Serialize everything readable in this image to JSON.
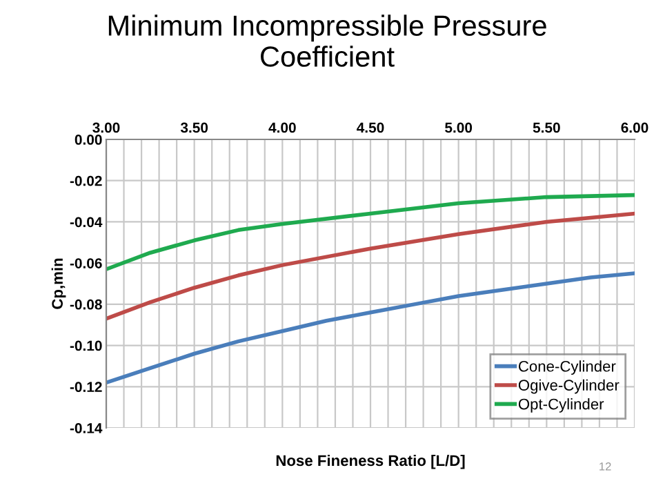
{
  "chart_data": {
    "type": "line",
    "title": "Minimum Incompressible Pressure\nCoefficient",
    "xlabel": "Nose Fineness Ratio [L/D]",
    "ylabel": "Cp,min",
    "series": [
      {
        "name": "Cone-Cylinder",
        "color": "#4a7ebb",
        "x": [
          3.0,
          3.25,
          3.5,
          3.75,
          4.0,
          4.25,
          4.5,
          4.75,
          5.0,
          5.25,
          5.5,
          5.75,
          6.0
        ],
        "values": [
          -0.118,
          -0.111,
          -0.104,
          -0.098,
          -0.093,
          -0.088,
          -0.084,
          -0.08,
          -0.076,
          -0.073,
          -0.07,
          -0.067,
          -0.065
        ]
      },
      {
        "name": "Ogive-Cylinder",
        "color": "#be4b48",
        "x": [
          3.0,
          3.25,
          3.5,
          3.75,
          4.0,
          4.5,
          5.0,
          5.5,
          6.0
        ],
        "values": [
          -0.087,
          -0.079,
          -0.072,
          -0.066,
          -0.061,
          -0.053,
          -0.046,
          -0.04,
          -0.036
        ]
      },
      {
        "name": "Opt-Cylinder",
        "color": "#1faa4f",
        "x": [
          3.0,
          3.25,
          3.5,
          3.75,
          4.0,
          4.5,
          5.0,
          5.5,
          6.0
        ],
        "values": [
          -0.063,
          -0.055,
          -0.049,
          -0.044,
          -0.041,
          -0.036,
          -0.031,
          -0.028,
          -0.027
        ]
      }
    ],
    "xlim": [
      3.0,
      6.0
    ],
    "ylim": [
      -0.14,
      0.0
    ],
    "xticks": [
      {
        "value": 3.0,
        "label": "3.00"
      },
      {
        "value": 3.1,
        "label": null
      },
      {
        "value": 3.2,
        "label": null
      },
      {
        "value": 3.3,
        "label": null
      },
      {
        "value": 3.4,
        "label": null
      },
      {
        "value": 3.5,
        "label": "3.50"
      },
      {
        "value": 3.6,
        "label": null
      },
      {
        "value": 3.7,
        "label": null
      },
      {
        "value": 3.8,
        "label": null
      },
      {
        "value": 3.9,
        "label": null
      },
      {
        "value": 4.0,
        "label": "4.00"
      },
      {
        "value": 4.1,
        "label": null
      },
      {
        "value": 4.2,
        "label": null
      },
      {
        "value": 4.3,
        "label": null
      },
      {
        "value": 4.4,
        "label": null
      },
      {
        "value": 4.5,
        "label": "4.50"
      },
      {
        "value": 4.6,
        "label": null
      },
      {
        "value": 4.7,
        "label": null
      },
      {
        "value": 4.8,
        "label": null
      },
      {
        "value": 4.9,
        "label": null
      },
      {
        "value": 5.0,
        "label": "5.00"
      },
      {
        "value": 5.1,
        "label": null
      },
      {
        "value": 5.2,
        "label": null
      },
      {
        "value": 5.3,
        "label": null
      },
      {
        "value": 5.4,
        "label": null
      },
      {
        "value": 5.5,
        "label": "5.50"
      },
      {
        "value": 5.6,
        "label": null
      },
      {
        "value": 5.7,
        "label": null
      },
      {
        "value": 5.8,
        "label": null
      },
      {
        "value": 5.9,
        "label": null
      },
      {
        "value": 6.0,
        "label": "6.00"
      }
    ],
    "yticks": [
      {
        "value": 0.0,
        "label": "0.00"
      },
      {
        "value": -0.02,
        "label": "-0.02"
      },
      {
        "value": -0.04,
        "label": "-0.04"
      },
      {
        "value": -0.06,
        "label": "-0.06"
      },
      {
        "value": -0.08,
        "label": "-0.08"
      },
      {
        "value": -0.1,
        "label": "-0.10"
      },
      {
        "value": -0.12,
        "label": "-0.12"
      },
      {
        "value": -0.14,
        "label": "-0.14"
      }
    ],
    "grid": true,
    "legend": "bottom right",
    "line_style": "solid",
    "marker": "none",
    "annotations": [
      "12"
    ]
  }
}
